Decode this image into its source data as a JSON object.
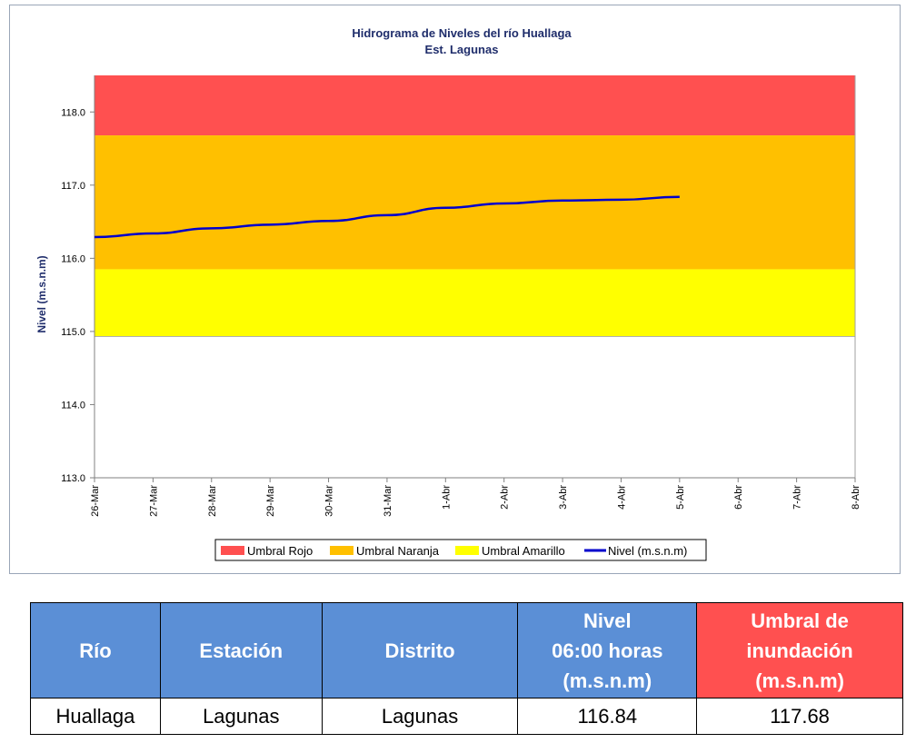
{
  "chart_data": {
    "type": "line",
    "title": "Hidrograma de Niveles del río Huallaga",
    "subtitle": "Est. Lagunas",
    "ylabel": "Nivel (m.s.n.m)",
    "xlabel": "",
    "ylim": [
      113.0,
      118.5
    ],
    "y_ticks": [
      "113.0",
      "114.0",
      "115.0",
      "116.0",
      "117.0",
      "118.0"
    ],
    "y_tick_values": [
      113.0,
      114.0,
      115.0,
      116.0,
      117.0,
      118.0
    ],
    "x_ticks": [
      "26-Mar",
      "27-Mar",
      "28-Mar",
      "29-Mar",
      "30-Mar",
      "31-Mar",
      "1-Abr",
      "2-Abr",
      "3-Abr",
      "4-Abr",
      "5-Abr",
      "6-Abr",
      "7-Abr",
      "8-Abr"
    ],
    "bands": [
      {
        "name": "Umbral Rojo",
        "from": 117.68,
        "to": 118.5,
        "color": "#ff5050"
      },
      {
        "name": "Umbral Naranja",
        "from": 115.85,
        "to": 117.68,
        "color": "#ffc000"
      },
      {
        "name": "Umbral Amarillo",
        "from": 114.93,
        "to": 115.85,
        "color": "#ffff00"
      }
    ],
    "series": [
      {
        "name": "Nivel (m.s.n.m)",
        "color": "#0000cc",
        "x": [
          "26-Mar",
          "27-Mar",
          "28-Mar",
          "29-Mar",
          "30-Mar",
          "31-Mar",
          "1-Abr",
          "2-Abr",
          "3-Abr",
          "4-Abr",
          "5-Abr"
        ],
        "values": [
          116.29,
          116.34,
          116.41,
          116.46,
          116.51,
          116.59,
          116.69,
          116.75,
          116.79,
          116.8,
          116.84
        ]
      }
    ],
    "legend": [
      "Umbral Rojo",
      "Umbral Naranja",
      "Umbral Amarillo",
      "Nivel (m.s.n.m)"
    ],
    "legend_position": "bottom",
    "grid": false
  },
  "table": {
    "headers": [
      "Río",
      "Estación",
      "Distrito",
      "Nivel\n06:00 horas\n(m.s.n.m)",
      "Umbral de\ninundación\n(m.s.n.m)"
    ],
    "row": [
      "Huallaga",
      "Lagunas",
      "Lagunas",
      "116.84",
      "117.68"
    ],
    "header_color": "#5b8fd6",
    "threshold_header_color": "#ff5050"
  }
}
